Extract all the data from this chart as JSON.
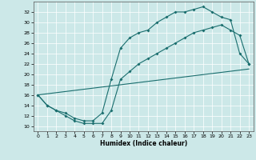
{
  "xlabel": "Humidex (Indice chaleur)",
  "bg_color": "#cce8e8",
  "line_color": "#1a6e6e",
  "xlim": [
    -0.5,
    23.5
  ],
  "ylim": [
    9,
    34
  ],
  "xticks": [
    0,
    1,
    2,
    3,
    4,
    5,
    6,
    7,
    8,
    9,
    10,
    11,
    12,
    13,
    14,
    15,
    16,
    17,
    18,
    19,
    20,
    21,
    22,
    23
  ],
  "yticks": [
    10,
    12,
    14,
    16,
    18,
    20,
    22,
    24,
    26,
    28,
    30,
    32
  ],
  "line1_x": [
    0,
    1,
    2,
    3,
    4,
    5,
    6,
    7,
    8,
    9,
    10,
    11,
    12,
    13,
    14,
    15,
    16,
    17,
    18,
    19,
    20,
    21,
    22,
    23
  ],
  "line1_y": [
    16,
    14,
    13,
    12,
    11,
    10.5,
    10.5,
    10.5,
    13,
    19,
    20.5,
    22,
    23,
    24,
    25,
    26,
    27,
    28,
    28.5,
    29,
    29.5,
    28.5,
    27.5,
    22
  ],
  "line2_x": [
    0,
    1,
    2,
    3,
    4,
    5,
    6,
    7,
    8,
    9,
    10,
    11,
    12,
    13,
    14,
    15,
    16,
    17,
    18,
    19,
    20,
    21,
    22,
    23
  ],
  "line2_y": [
    16,
    14,
    13,
    12.5,
    11.5,
    11,
    11,
    12.5,
    19,
    25,
    27,
    28,
    28.5,
    30,
    31,
    32,
    32,
    32.5,
    33,
    32,
    31,
    30.5,
    24,
    22
  ],
  "line3_x": [
    0,
    23
  ],
  "line3_y": [
    16,
    21
  ]
}
